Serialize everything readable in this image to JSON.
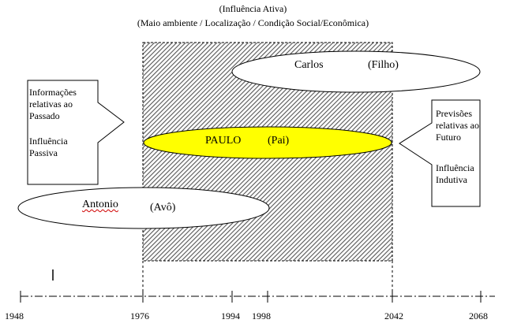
{
  "header": {
    "line1": "(Influência Ativa)",
    "line2": "(Maio ambiente / Localização / Condição Social/Econômica)"
  },
  "left_box": {
    "line1": "Informações",
    "line2": "relativas ao",
    "line3": "Passado",
    "line4": "Influência",
    "line5": "Passiva"
  },
  "right_box": {
    "line1": "Previsões",
    "line2": "relativas ao",
    "line3": "Futuro",
    "line4": "Influência",
    "line5": "Indutiva"
  },
  "generations": {
    "son": {
      "name": "Carlos",
      "role": "(Filho)"
    },
    "father": {
      "name": "PAULO",
      "role": "(Pai)"
    },
    "grandfather": {
      "name": "Antonio",
      "role": "(Avô)"
    }
  },
  "timeline": {
    "years": [
      "1948",
      "1976",
      "1994",
      "1998",
      "2042",
      "2068"
    ]
  },
  "colors": {
    "father_fill": "#ffff00",
    "hatch": "#555555",
    "line": "#000000"
  }
}
